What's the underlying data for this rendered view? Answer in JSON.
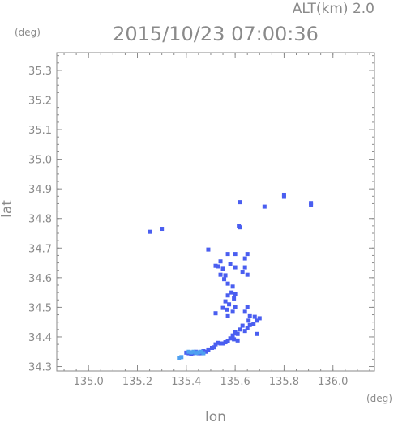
{
  "chart_data": {
    "type": "scatter",
    "title": "2015/10/23 07:00:36",
    "subtitle": "ALT(km) 2.0",
    "xlabel": "lon",
    "ylabel": "lat",
    "x_unit": "(deg)",
    "y_unit": "(deg)",
    "xlim": [
      134.87,
      136.17
    ],
    "ylim": [
      34.285,
      35.36
    ],
    "x_ticks": [
      135.0,
      135.2,
      135.4,
      135.6,
      135.8,
      136.0
    ],
    "y_ticks": [
      34.3,
      34.4,
      34.5,
      34.6,
      34.7,
      34.8,
      34.9,
      35.0,
      35.1,
      35.2,
      35.3
    ],
    "x_tick_labels": [
      "135.0",
      "135.2",
      "135.4",
      "135.6",
      "135.8",
      "136.0"
    ],
    "y_tick_labels": [
      "34.3",
      "34.4",
      "34.5",
      "34.6",
      "34.7",
      "34.8",
      "34.9",
      "35.0",
      "35.1",
      "35.2",
      "35.3"
    ],
    "grid": false,
    "colors": {
      "main": "#4a5ef0",
      "light": "#4fa0f0",
      "axis": "#8a8a8a"
    },
    "series": [
      {
        "color": "#4a5ef0",
        "points": [
          [
            135.91,
            34.852
          ],
          [
            135.91,
            34.845
          ],
          [
            135.8,
            34.88
          ],
          [
            135.8,
            34.873
          ],
          [
            135.72,
            34.84
          ],
          [
            135.62,
            34.855
          ],
          [
            135.615,
            34.775
          ],
          [
            135.62,
            34.77
          ],
          [
            135.3,
            34.765
          ],
          [
            135.25,
            34.755
          ],
          [
            135.49,
            34.695
          ],
          [
            135.54,
            34.655
          ],
          [
            135.57,
            34.68
          ],
          [
            135.6,
            34.68
          ],
          [
            135.65,
            34.68
          ],
          [
            135.64,
            34.665
          ],
          [
            135.52,
            34.64
          ],
          [
            135.53,
            34.638
          ],
          [
            135.55,
            34.63
          ],
          [
            135.58,
            34.645
          ],
          [
            135.6,
            34.635
          ],
          [
            135.64,
            34.635
          ],
          [
            135.63,
            34.62
          ],
          [
            135.65,
            34.61
          ],
          [
            135.54,
            34.61
          ],
          [
            135.56,
            34.608
          ],
          [
            135.555,
            34.595
          ],
          [
            135.57,
            34.58
          ],
          [
            135.59,
            34.57
          ],
          [
            135.585,
            34.55
          ],
          [
            135.6,
            34.545
          ],
          [
            135.595,
            34.53
          ],
          [
            135.57,
            34.54
          ],
          [
            135.56,
            34.52
          ],
          [
            135.575,
            34.51
          ],
          [
            135.55,
            34.498
          ],
          [
            135.565,
            34.492
          ],
          [
            135.6,
            34.5
          ],
          [
            135.59,
            34.485
          ],
          [
            135.65,
            34.5
          ],
          [
            135.64,
            34.485
          ],
          [
            135.66,
            34.47
          ],
          [
            135.68,
            34.468
          ],
          [
            135.69,
            34.455
          ],
          [
            135.7,
            34.463
          ],
          [
            135.655,
            34.455
          ],
          [
            135.66,
            34.44
          ],
          [
            135.675,
            34.443
          ],
          [
            135.65,
            34.43
          ],
          [
            135.63,
            34.438
          ],
          [
            135.62,
            34.425
          ],
          [
            135.64,
            34.42
          ],
          [
            135.61,
            34.41
          ],
          [
            135.6,
            34.415
          ],
          [
            135.59,
            34.405
          ],
          [
            135.58,
            34.395
          ],
          [
            135.595,
            34.392
          ],
          [
            135.61,
            34.388
          ],
          [
            135.57,
            34.385
          ],
          [
            135.56,
            34.382
          ],
          [
            135.55,
            34.378
          ],
          [
            135.54,
            34.378
          ],
          [
            135.53,
            34.38
          ],
          [
            135.52,
            34.375
          ],
          [
            135.515,
            34.365
          ],
          [
            135.505,
            34.363
          ],
          [
            135.49,
            34.355
          ],
          [
            135.48,
            34.35
          ],
          [
            135.47,
            34.352
          ],
          [
            135.69,
            34.41
          ],
          [
            135.57,
            34.47
          ],
          [
            135.52,
            34.48
          ],
          [
            135.46,
            34.345
          ],
          [
            135.45,
            34.345
          ],
          [
            135.44,
            34.35
          ],
          [
            135.43,
            34.345
          ],
          [
            135.42,
            34.343
          ],
          [
            135.41,
            34.345
          ],
          [
            135.4,
            34.347
          ]
        ]
      },
      {
        "color": "#4fa0f0",
        "points": [
          [
            135.47,
            34.345
          ],
          [
            135.46,
            34.35
          ],
          [
            135.45,
            34.348
          ],
          [
            135.44,
            34.346
          ],
          [
            135.43,
            34.35
          ],
          [
            135.42,
            34.348
          ],
          [
            135.41,
            34.35
          ],
          [
            135.38,
            34.332
          ],
          [
            135.37,
            34.328
          ]
        ]
      }
    ]
  }
}
